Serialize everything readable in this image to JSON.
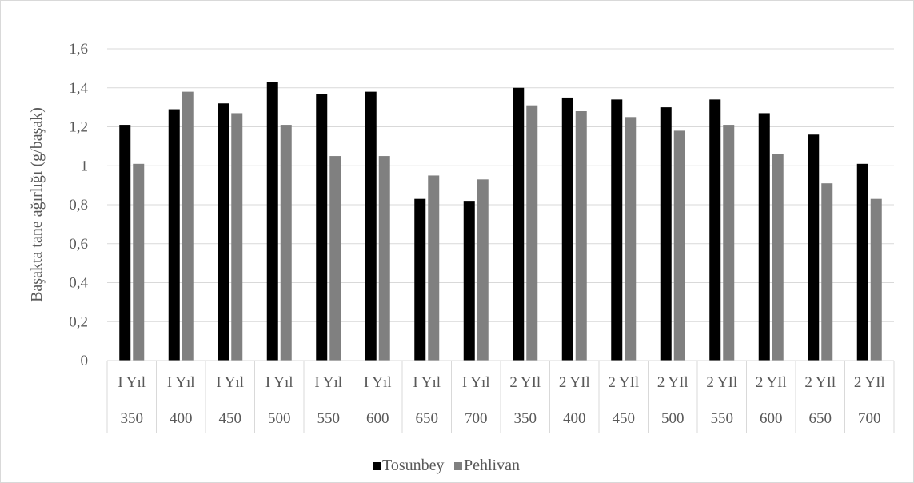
{
  "chart_data": {
    "type": "bar",
    "title": "",
    "ylabel": "Başakta tane ağırlığı (g/başak)",
    "xlabel": "",
    "ylim": [
      0,
      1.6
    ],
    "yticks": [
      "0",
      "0,2",
      "0,4",
      "0,6",
      "0,8",
      "1",
      "1,2",
      "1,4",
      "1,6"
    ],
    "ytick_values": [
      0,
      0.2,
      0.4,
      0.6,
      0.8,
      1.0,
      1.2,
      1.4,
      1.6
    ],
    "grid": true,
    "legend_position": "bottom",
    "categories": [
      {
        "group": "I Yıl",
        "value": "350"
      },
      {
        "group": "I Yıl",
        "value": "400"
      },
      {
        "group": "I Yıl",
        "value": "450"
      },
      {
        "group": "I Yıl",
        "value": "500"
      },
      {
        "group": "I Yıl",
        "value": "550"
      },
      {
        "group": "I Yıl",
        "value": "600"
      },
      {
        "group": "I Yıl",
        "value": "650"
      },
      {
        "group": "I Yıl",
        "value": "700"
      },
      {
        "group": "2 YIl",
        "value": "350"
      },
      {
        "group": "2 YIl",
        "value": "400"
      },
      {
        "group": "2 YIl",
        "value": "450"
      },
      {
        "group": "2 YIl",
        "value": "500"
      },
      {
        "group": "2 YIl",
        "value": "550"
      },
      {
        "group": "2 YIl",
        "value": "600"
      },
      {
        "group": "2 YIl",
        "value": "650"
      },
      {
        "group": "2 YIl",
        "value": "700"
      }
    ],
    "series": [
      {
        "name": "Tosunbey",
        "color": "#000000",
        "values": [
          1.21,
          1.29,
          1.32,
          1.43,
          1.37,
          1.38,
          0.83,
          0.82,
          1.4,
          1.35,
          1.34,
          1.3,
          1.34,
          1.27,
          1.16,
          1.01
        ]
      },
      {
        "name": "Pehlivan",
        "color": "#808080",
        "values": [
          1.01,
          1.38,
          1.27,
          1.21,
          1.05,
          1.05,
          0.95,
          0.93,
          1.31,
          1.28,
          1.25,
          1.18,
          1.21,
          1.06,
          0.91,
          0.83
        ]
      }
    ]
  }
}
